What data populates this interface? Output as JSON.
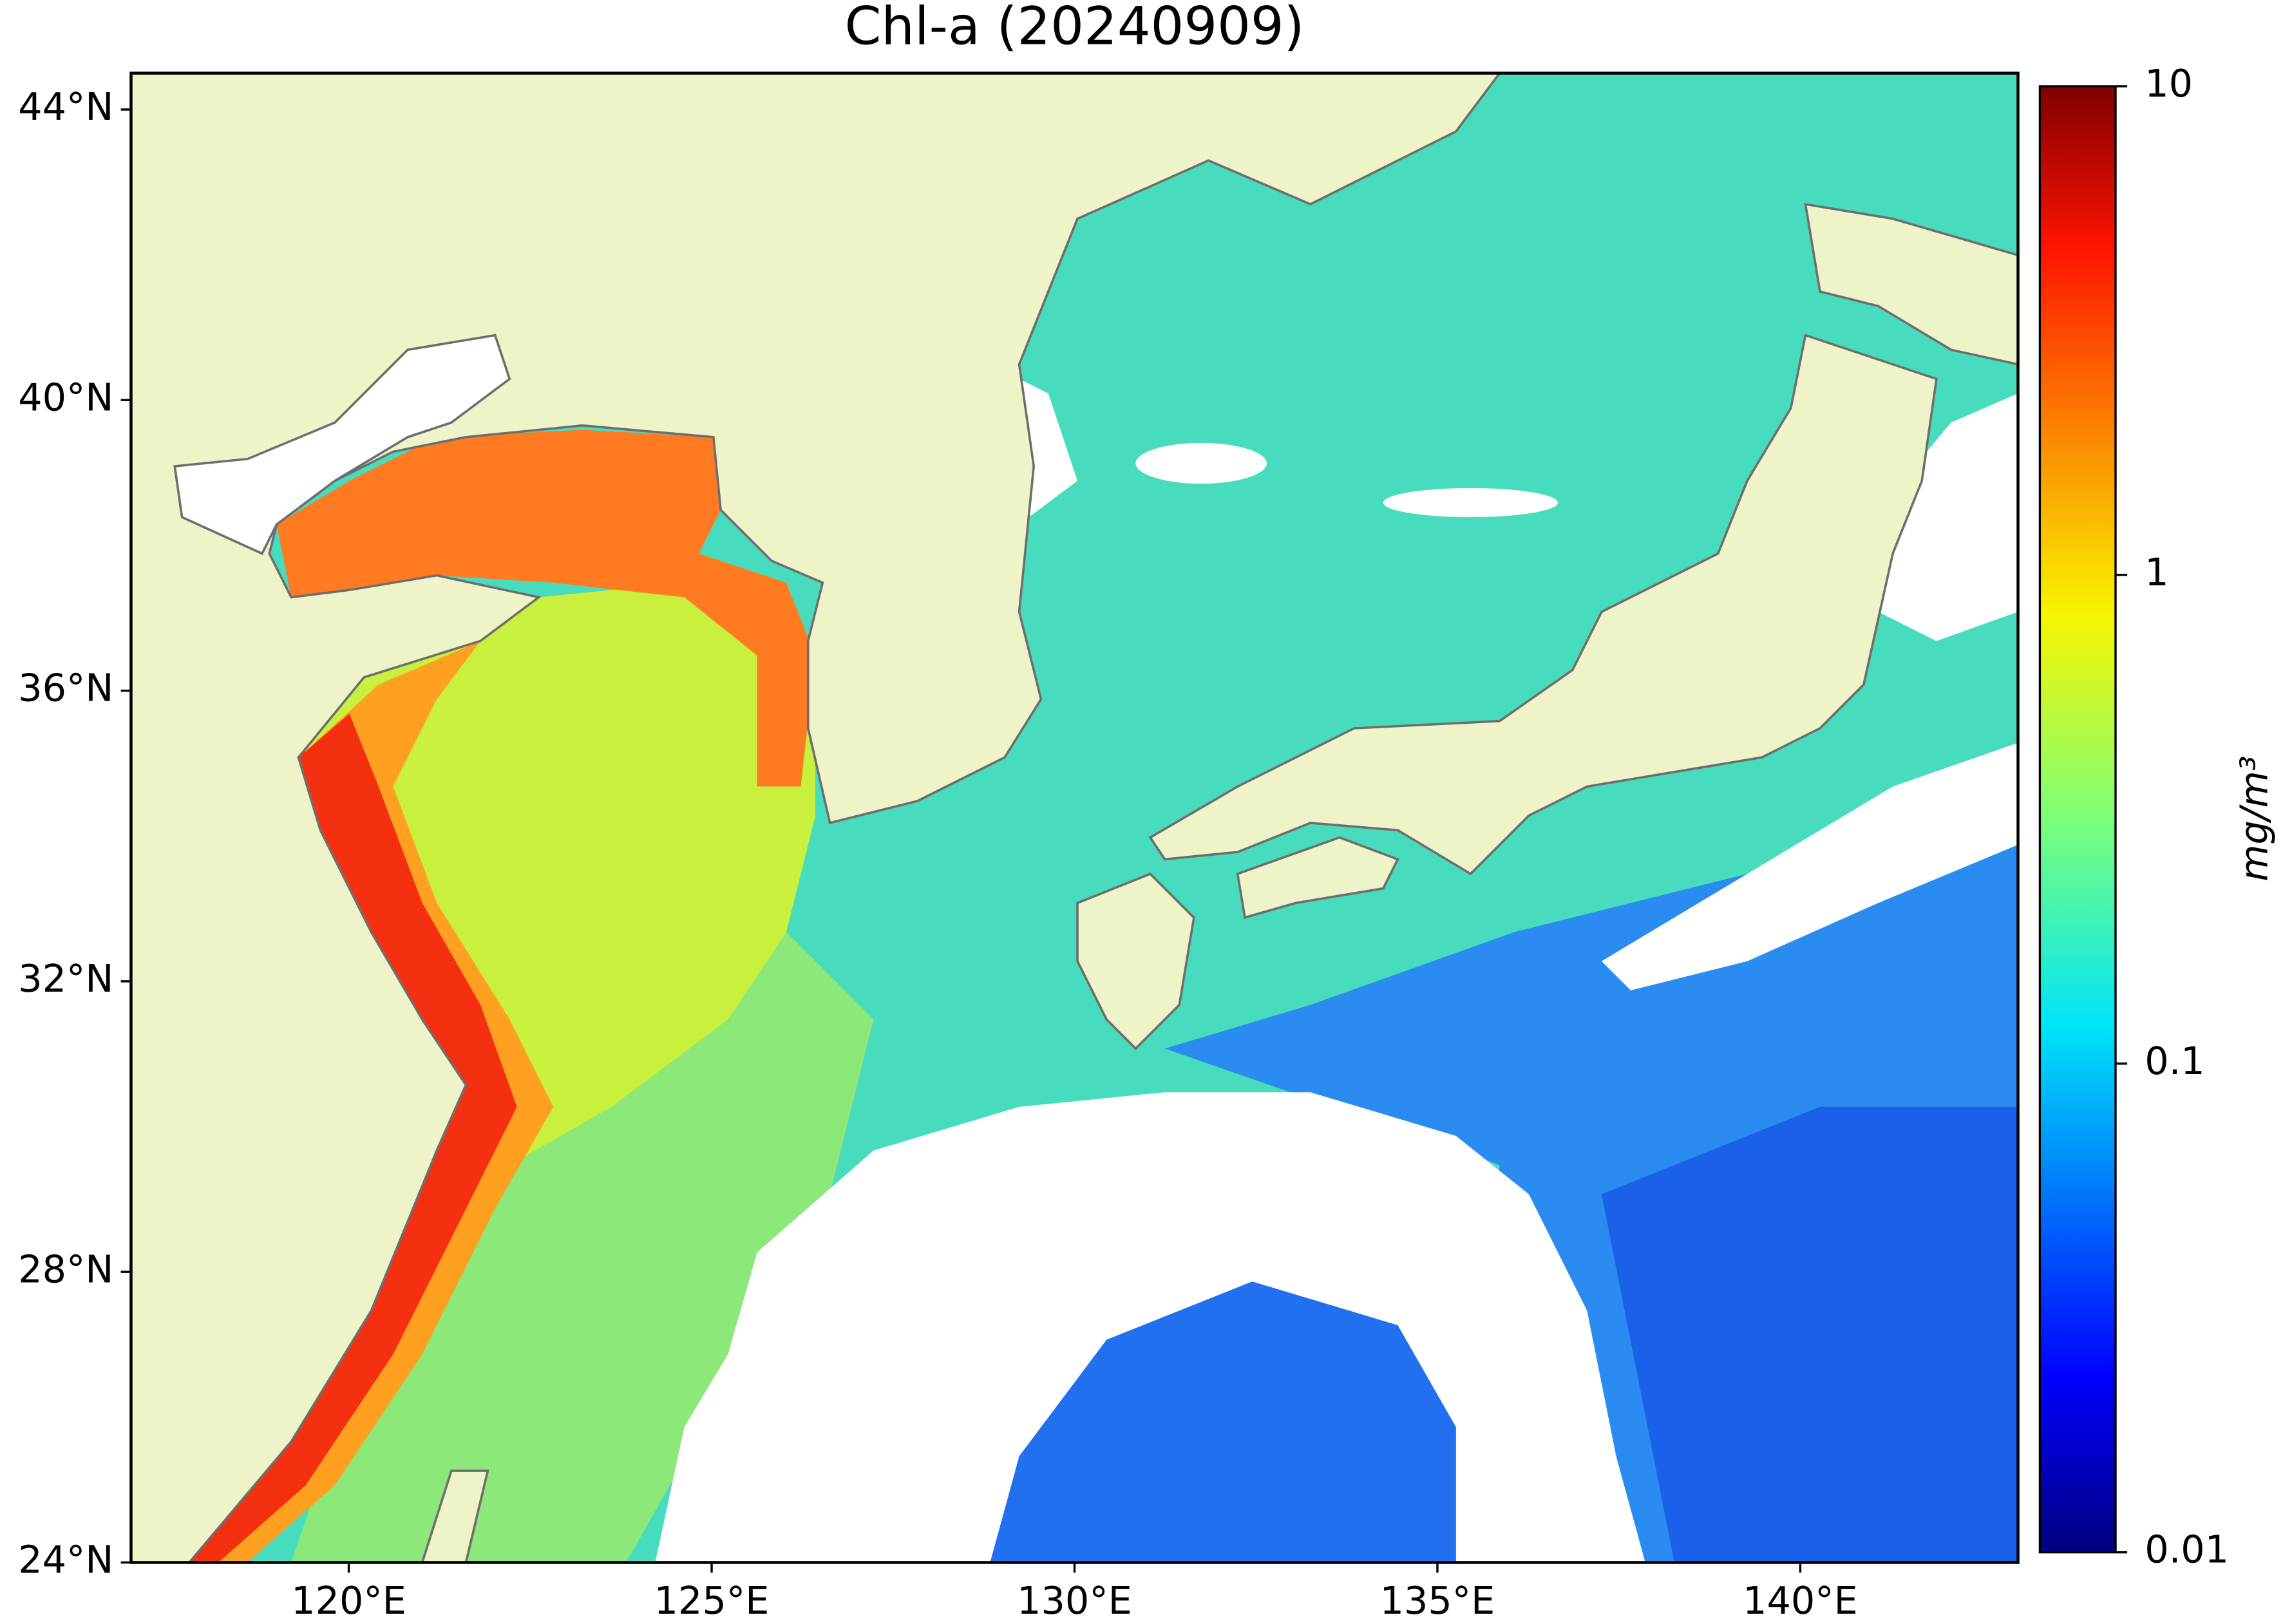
{
  "chart_data": {
    "type": "map",
    "title": "Chl-a (20240909)",
    "xlim": [
      117,
      143
    ],
    "ylim": [
      24,
      44.5
    ],
    "xticks": [
      {
        "value": 120,
        "label": "120°E"
      },
      {
        "value": 125,
        "label": "125°E"
      },
      {
        "value": 130,
        "label": "130°E"
      },
      {
        "value": 135,
        "label": "135°E"
      },
      {
        "value": 140,
        "label": "140°E"
      }
    ],
    "yticks": [
      {
        "value": 24,
        "label": "24°N"
      },
      {
        "value": 28,
        "label": "28°N"
      },
      {
        "value": 32,
        "label": "32°N"
      },
      {
        "value": 36,
        "label": "36°N"
      },
      {
        "value": 40,
        "label": "40°N"
      },
      {
        "value": 44,
        "label": "44°N"
      }
    ],
    "colorbar": {
      "label": "mg/m³",
      "scale": "log",
      "lim": [
        0.01,
        10
      ],
      "ticks": [
        0.01,
        0.1,
        1,
        10
      ]
    }
  }
}
